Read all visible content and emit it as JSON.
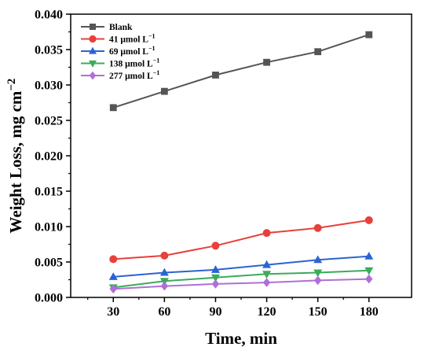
{
  "chart_data": {
    "type": "line",
    "title": "",
    "xlabel": "Time, min",
    "ylabel_main": "Weight Loss, mg cm",
    "ylabel_sup": "−2",
    "xlim": [
      5,
      205
    ],
    "ylim": [
      0,
      0.04
    ],
    "x": [
      30,
      60,
      90,
      120,
      150,
      180
    ],
    "x_tick_labels": [
      "30",
      "60",
      "90",
      "120",
      "150",
      "180"
    ],
    "y_ticks": [
      0,
      0.005,
      0.01,
      0.015,
      0.02,
      0.025,
      0.03,
      0.035,
      0.04
    ],
    "y_tick_labels": [
      "0.000",
      "0.005",
      "0.010",
      "0.015",
      "0.020",
      "0.025",
      "0.030",
      "0.035",
      "0.040"
    ],
    "grid": false,
    "legend_position": "top-left",
    "series": [
      {
        "name": "Blank",
        "unit": "",
        "marker": "square",
        "color": "#555555",
        "values": [
          0.0268,
          0.0291,
          0.0314,
          0.0332,
          0.0347,
          0.0371
        ]
      },
      {
        "name": "41 μmol L",
        "unit": "−1",
        "marker": "circle",
        "color": "#e8403a",
        "values": [
          0.0054,
          0.0059,
          0.0073,
          0.0091,
          0.0098,
          0.0109
        ]
      },
      {
        "name": "69 μmol L",
        "unit": "−1",
        "marker": "triangle-up",
        "color": "#2a64d2",
        "values": [
          0.0029,
          0.0035,
          0.0039,
          0.0046,
          0.0053,
          0.0058
        ]
      },
      {
        "name": "138 μmol L",
        "unit": "−1",
        "marker": "triangle-down",
        "color": "#3aac5a",
        "values": [
          0.0014,
          0.0023,
          0.0028,
          0.0033,
          0.0035,
          0.0038
        ]
      },
      {
        "name": "277 μmol L",
        "unit": "−1",
        "marker": "diamond",
        "color": "#b06fd8",
        "values": [
          0.0012,
          0.0016,
          0.0019,
          0.0021,
          0.0024,
          0.0026
        ]
      }
    ]
  }
}
